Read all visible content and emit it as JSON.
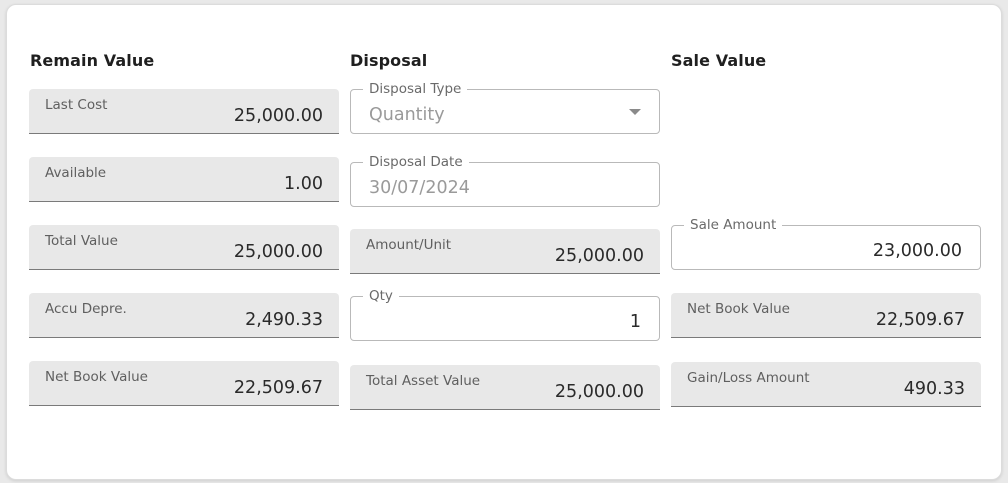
{
  "columns": {
    "remain": "Remain Value",
    "disposal": "Disposal",
    "sale": "Sale Value"
  },
  "remain": {
    "last_cost": {
      "label": "Last Cost",
      "value": "25,000.00"
    },
    "available": {
      "label": "Available",
      "value": "1.00"
    },
    "total_value": {
      "label": "Total Value",
      "value": "25,000.00"
    },
    "accu_depre": {
      "label": "Accu Depre.",
      "value": "2,490.33"
    },
    "net_book_value": {
      "label": "Net Book Value",
      "value": "22,509.67"
    }
  },
  "disposal": {
    "disposal_type": {
      "label": "Disposal Type",
      "value": "Quantity"
    },
    "disposal_date": {
      "label": "Disposal Date",
      "value": "30/07/2024"
    },
    "amount_unit": {
      "label": "Amount/Unit",
      "value": "25,000.00"
    },
    "qty": {
      "label": "Qty",
      "value": "1"
    },
    "total_asset_value": {
      "label": "Total Asset Value",
      "value": "25,000.00"
    }
  },
  "sale": {
    "sale_amount": {
      "label": "Sale Amount",
      "value": "23,000.00"
    },
    "net_book_value": {
      "label": "Net Book Value",
      "value": "22,509.67"
    },
    "gain_loss": {
      "label": "Gain/Loss Amount",
      "value": "490.33"
    }
  },
  "icons": {
    "dropdown": "chevron-down-icon"
  }
}
